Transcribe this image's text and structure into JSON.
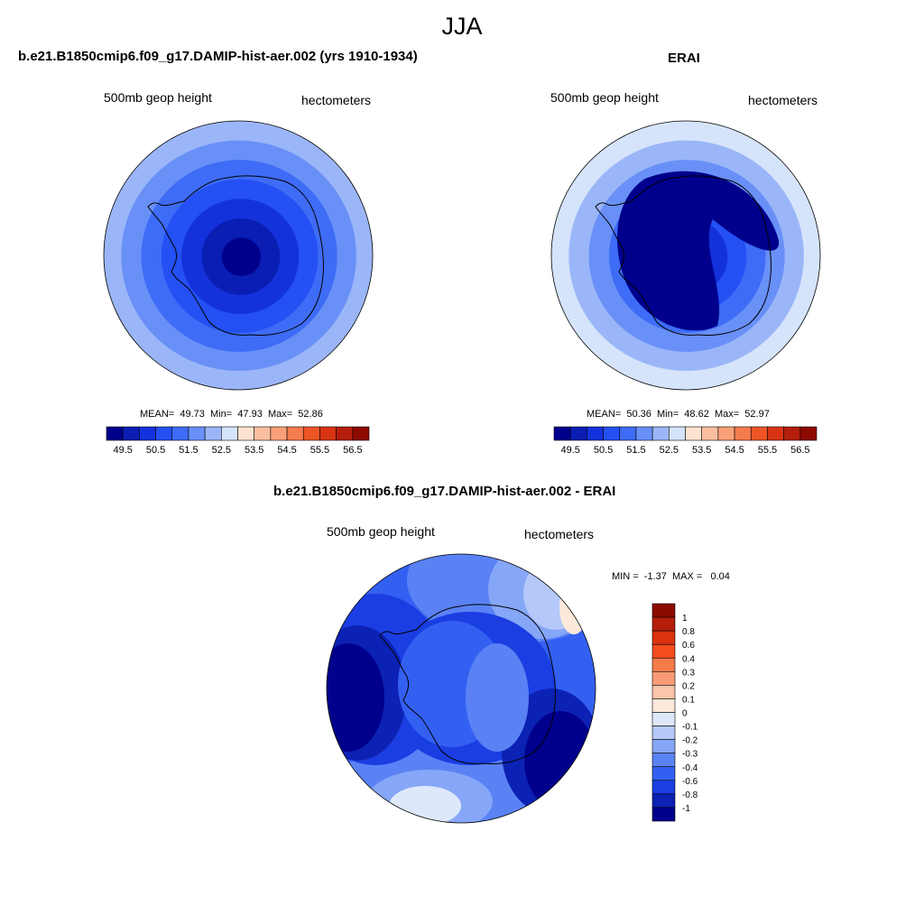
{
  "figure": {
    "title": "JJA"
  },
  "chart_data": [
    {
      "type": "heatmap",
      "name": "model-panel",
      "title": "b.e21.B1850cmip6.f09_g17.DAMIP-hist-aer.002 (yrs 1910-1934)",
      "variable": "500mb geop height",
      "units": "hectometers",
      "projection": "south polar stereographic",
      "stats": {
        "mean_label": "MEAN=",
        "mean": "49.73",
        "min_label": "Min=",
        "min": "47.93",
        "max_label": "Max=",
        "max": "52.86"
      },
      "colorbar": {
        "levels": [
          "49.5",
          "50",
          "50.5",
          "51",
          "51.5",
          "52",
          "52.5",
          "53",
          "53.5",
          "54",
          "54.5",
          "55",
          "55.5",
          "56",
          "56.5"
        ],
        "tick_labels": [
          "49.5",
          "50.5",
          "51.5",
          "52.5",
          "53.5",
          "54.5",
          "55.5",
          "56.5"
        ],
        "colors": [
          "#00008c",
          "#0a1eb4",
          "#1432dc",
          "#2450f4",
          "#3e6cf6",
          "#6990f7",
          "#9bb6f8",
          "#d5e4fb",
          "#fee3d0",
          "#fbbfa0",
          "#f9a078",
          "#f57c4e",
          "#ee5526",
          "#d83414",
          "#b41e0a",
          "#8c0a00"
        ]
      },
      "rings_outer_to_inner": [
        52.25,
        51.75,
        51.25,
        50.75,
        50.25,
        49.75,
        49.25
      ]
    },
    {
      "type": "heatmap",
      "name": "erai-panel",
      "title": "ERAI",
      "variable": "500mb geop height",
      "units": "hectometers",
      "projection": "south polar stereographic",
      "stats": {
        "mean_label": "MEAN=",
        "mean": "50.36",
        "min_label": "Min=",
        "min": "48.62",
        "max_label": "Max=",
        "max": "52.97"
      },
      "colorbar": {
        "levels": [
          "49.5",
          "50",
          "50.5",
          "51",
          "51.5",
          "52",
          "52.5",
          "53",
          "53.5",
          "54",
          "54.5",
          "55",
          "55.5",
          "56",
          "56.5"
        ],
        "tick_labels": [
          "49.5",
          "50.5",
          "51.5",
          "52.5",
          "53.5",
          "54.5",
          "55.5",
          "56.5"
        ],
        "colors": [
          "#00008c",
          "#0a1eb4",
          "#1432dc",
          "#2450f4",
          "#3e6cf6",
          "#6990f7",
          "#9bb6f8",
          "#d5e4fb",
          "#fee3d0",
          "#fbbfa0",
          "#f9a078",
          "#f57c4e",
          "#ee5526",
          "#d83414",
          "#b41e0a",
          "#8c0a00"
        ]
      },
      "rings_outer_to_inner": [
        52.75,
        52.25,
        51.75,
        51.25,
        50.75,
        50.25,
        49.75
      ]
    },
    {
      "type": "heatmap",
      "name": "difference-panel",
      "title": "b.e21.B1850cmip6.f09_g17.DAMIP-hist-aer.002 - ERAI",
      "variable": "500mb geop height",
      "units": "hectometers",
      "projection": "south polar stereographic",
      "stats": {
        "min_label": "MIN =",
        "min": "-1.37",
        "max_label": "MAX =",
        "max": "0.04"
      },
      "colorbar": {
        "tick_labels": [
          "1",
          "0.8",
          "0.6",
          "0.4",
          "0.3",
          "0.2",
          "0.1",
          "0",
          "-0.1",
          "-0.2",
          "-0.3",
          "-0.4",
          "-0.6",
          "-0.8",
          "-1"
        ],
        "colors": [
          "#8c0a00",
          "#b41e0a",
          "#dc320f",
          "#f54c1e",
          "#f77a4a",
          "#f99b76",
          "#fcc4a8",
          "#fde8da",
          "#dde8fb",
          "#b4c9f9",
          "#86a6f7",
          "#5a82f5",
          "#3460f2",
          "#1a3ee2",
          "#0c22b4",
          "#00008c"
        ]
      }
    }
  ]
}
